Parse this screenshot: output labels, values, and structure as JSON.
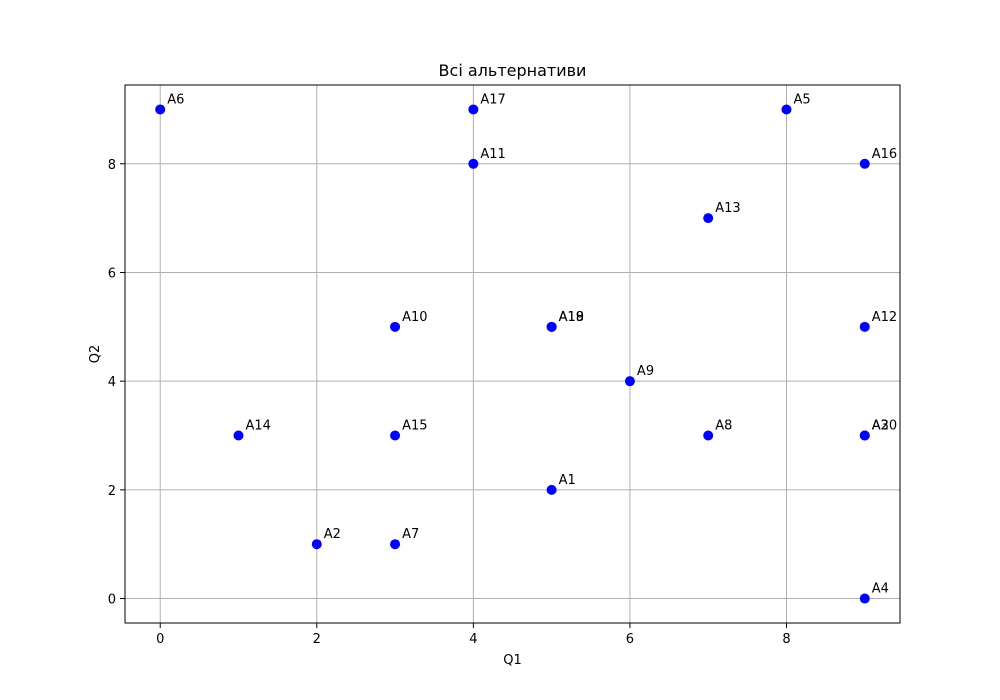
{
  "chart_data": {
    "type": "scatter",
    "title": "Всі альтернативи",
    "xlabel": "Q1",
    "ylabel": "Q2",
    "xlim": [
      -0.45,
      9.45
    ],
    "ylim": [
      -0.45,
      9.45
    ],
    "xticks": [
      0,
      2,
      4,
      6,
      8
    ],
    "yticks": [
      0,
      2,
      4,
      6,
      8
    ],
    "grid": true,
    "point_color": "#0000ff",
    "points": [
      {
        "label": "A1",
        "x": 5,
        "y": 2
      },
      {
        "label": "A2",
        "x": 2,
        "y": 1
      },
      {
        "label": "A3",
        "x": 9,
        "y": 3
      },
      {
        "label": "A4",
        "x": 9,
        "y": 0
      },
      {
        "label": "A5",
        "x": 8,
        "y": 9
      },
      {
        "label": "A6",
        "x": 0,
        "y": 9
      },
      {
        "label": "A7",
        "x": 3,
        "y": 1
      },
      {
        "label": "A8",
        "x": 7,
        "y": 3
      },
      {
        "label": "A9",
        "x": 6,
        "y": 4
      },
      {
        "label": "A10",
        "x": 3,
        "y": 5
      },
      {
        "label": "A11",
        "x": 4,
        "y": 8
      },
      {
        "label": "A12",
        "x": 9,
        "y": 5
      },
      {
        "label": "A13",
        "x": 7,
        "y": 7
      },
      {
        "label": "A14",
        "x": 1,
        "y": 3
      },
      {
        "label": "A15",
        "x": 3,
        "y": 3
      },
      {
        "label": "A16",
        "x": 9,
        "y": 8
      },
      {
        "label": "A17",
        "x": 4,
        "y": 9
      },
      {
        "label": "A18",
        "x": 5,
        "y": 5
      },
      {
        "label": "A19",
        "x": 5,
        "y": 5
      },
      {
        "label": "A20",
        "x": 9,
        "y": 3
      }
    ]
  }
}
